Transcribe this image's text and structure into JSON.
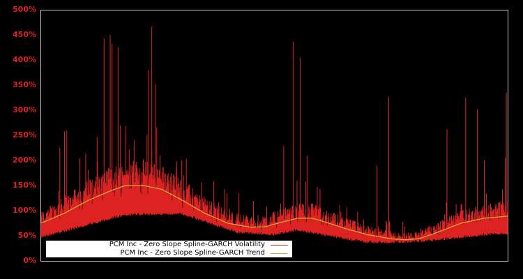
{
  "chart_data": {
    "type": "line",
    "title": "",
    "xlabel": "",
    "ylabel": "",
    "ylim": [
      0,
      500
    ],
    "yticks": [
      "0%",
      "50%",
      "100%",
      "150%",
      "200%",
      "250%",
      "300%",
      "350%",
      "400%",
      "450%",
      "500%"
    ],
    "grid": false,
    "legend_position": "lower left",
    "background": "#000000",
    "series": [
      {
        "name": "PCM Inc - Zero Slope Spline-GARCH Volatility",
        "color": "#dd2222",
        "baseline_by_x_fraction": [
          [
            0.0,
            45
          ],
          [
            0.1,
            70
          ],
          [
            0.18,
            90
          ],
          [
            0.3,
            92
          ],
          [
            0.42,
            55
          ],
          [
            0.5,
            50
          ],
          [
            0.55,
            60
          ],
          [
            0.6,
            50
          ],
          [
            0.7,
            35
          ],
          [
            0.78,
            35
          ],
          [
            0.85,
            40
          ],
          [
            0.95,
            50
          ],
          [
            1.0,
            53
          ]
        ],
        "notable_spikes": [
          {
            "x_frac": 0.135,
            "value": 443
          },
          {
            "x_frac": 0.148,
            "value": 450
          },
          {
            "x_frac": 0.152,
            "value": 432
          },
          {
            "x_frac": 0.165,
            "value": 425
          },
          {
            "x_frac": 0.237,
            "value": 466
          },
          {
            "x_frac": 0.23,
            "value": 380
          },
          {
            "x_frac": 0.245,
            "value": 352
          },
          {
            "x_frac": 0.04,
            "value": 225
          },
          {
            "x_frac": 0.05,
            "value": 258
          },
          {
            "x_frac": 0.055,
            "value": 260
          },
          {
            "x_frac": 0.12,
            "value": 247
          },
          {
            "x_frac": 0.17,
            "value": 270
          },
          {
            "x_frac": 0.54,
            "value": 437
          },
          {
            "x_frac": 0.555,
            "value": 405
          },
          {
            "x_frac": 0.52,
            "value": 228
          },
          {
            "x_frac": 0.57,
            "value": 210
          },
          {
            "x_frac": 0.745,
            "value": 327
          },
          {
            "x_frac": 0.72,
            "value": 190
          },
          {
            "x_frac": 0.87,
            "value": 262
          },
          {
            "x_frac": 0.91,
            "value": 325
          },
          {
            "x_frac": 0.935,
            "value": 302
          },
          {
            "x_frac": 0.95,
            "value": 200
          },
          {
            "x_frac": 0.997,
            "value": 335
          },
          {
            "x_frac": 0.995,
            "value": 205
          }
        ]
      },
      {
        "name": "PCM Inc - Zero Slope Spline-GARCH Trend",
        "color": "#d4a838",
        "points_by_x_fraction": [
          [
            0.0,
            75
          ],
          [
            0.05,
            95
          ],
          [
            0.1,
            120
          ],
          [
            0.15,
            140
          ],
          [
            0.18,
            150
          ],
          [
            0.22,
            150
          ],
          [
            0.26,
            142
          ],
          [
            0.3,
            122
          ],
          [
            0.35,
            95
          ],
          [
            0.4,
            75
          ],
          [
            0.45,
            67
          ],
          [
            0.48,
            68
          ],
          [
            0.52,
            78
          ],
          [
            0.55,
            85
          ],
          [
            0.58,
            85
          ],
          [
            0.6,
            80
          ],
          [
            0.65,
            65
          ],
          [
            0.7,
            52
          ],
          [
            0.75,
            44
          ],
          [
            0.78,
            42
          ],
          [
            0.81,
            44
          ],
          [
            0.85,
            57
          ],
          [
            0.9,
            75
          ],
          [
            0.95,
            85
          ],
          [
            1.0,
            89
          ]
        ]
      }
    ]
  },
  "legend": {
    "volatility_label": "PCM Inc - Zero Slope Spline-GARCH Volatility",
    "trend_label": "PCM Inc - Zero Slope Spline-GARCH Trend"
  }
}
